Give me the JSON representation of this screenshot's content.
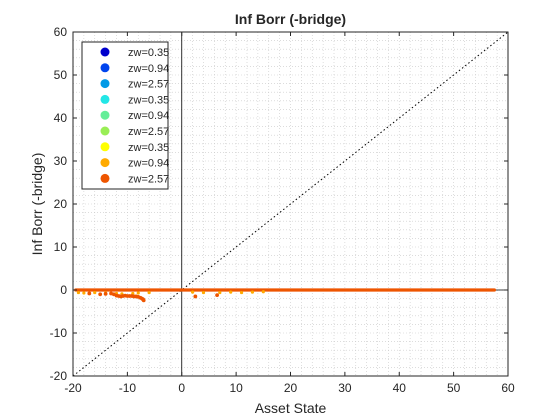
{
  "chart_data": {
    "type": "scatter",
    "title": "Inf Borr (-bridge)",
    "xlabel": "Asset State",
    "ylabel": "Inf Borr (-bridge)",
    "xlim": [
      -20,
      60
    ],
    "ylim": [
      -20,
      60
    ],
    "xticks": [
      -20,
      -10,
      0,
      10,
      20,
      30,
      40,
      50,
      60
    ],
    "yticks": [
      -20,
      -10,
      0,
      10,
      20,
      30,
      40,
      50,
      60
    ],
    "grid": "minor dotted",
    "legend_position": "top-left",
    "reference_lines": [
      {
        "kind": "diagonal",
        "style": "dotted",
        "from": [
          -20,
          -20
        ],
        "to": [
          60,
          60
        ]
      },
      {
        "kind": "vertical",
        "x": 0
      },
      {
        "kind": "horizontal",
        "y": 0
      }
    ],
    "series": [
      {
        "name": "zw=0.35",
        "color": "#0000cc"
      },
      {
        "name": "zw=0.94",
        "color": "#0044ee"
      },
      {
        "name": "zw=2.57",
        "color": "#0099e6"
      },
      {
        "name": "zw=0.35",
        "color": "#22e6e6"
      },
      {
        "name": "zw=0.94",
        "color": "#66ee99"
      },
      {
        "name": "zw=2.57",
        "color": "#99ee55"
      },
      {
        "name": "zw=0.35",
        "color": "#ffff00"
      },
      {
        "name": "zw=0.94",
        "color": "#ffaa00"
      },
      {
        "name": "zw=2.57",
        "color": "#ee5500",
        "x": [
          -17,
          -15,
          -14,
          -13,
          -12.5,
          -12,
          -11.6,
          -11.2,
          -10.8,
          -10.4,
          -10,
          -9.6,
          -9.2,
          -8.8,
          -8.4,
          -8,
          -7.6,
          -7.3,
          -7.1,
          -7,
          2.5,
          6.5
        ],
        "y": [
          -0.8,
          -1,
          -0.9,
          -0.8,
          -1,
          -1.3,
          -1.4,
          -1.5,
          -1.4,
          -1.3,
          -1.4,
          -1.4,
          -1.4,
          -1.5,
          -1.5,
          -1.6,
          -1.8,
          -2,
          -2.2,
          -2.4,
          -1.5,
          -1.2
        ]
      }
    ],
    "band": {
      "series_index": 8,
      "x_start": -19.5,
      "x_end": 57.5,
      "y": 0
    },
    "band_ticks": {
      "series_index": 7,
      "x": [
        -19,
        -18,
        -16,
        -14,
        -12,
        -11,
        -9,
        -8,
        -6,
        2,
        4,
        7,
        9,
        11,
        13,
        15
      ],
      "y": [
        -0.6,
        -0.7,
        -0.6,
        -0.7,
        -0.8,
        -0.9,
        -0.8,
        -0.7,
        -0.6,
        -0.5,
        -0.6,
        -0.6,
        -0.5,
        -0.6,
        -0.5,
        -0.4
      ]
    }
  }
}
